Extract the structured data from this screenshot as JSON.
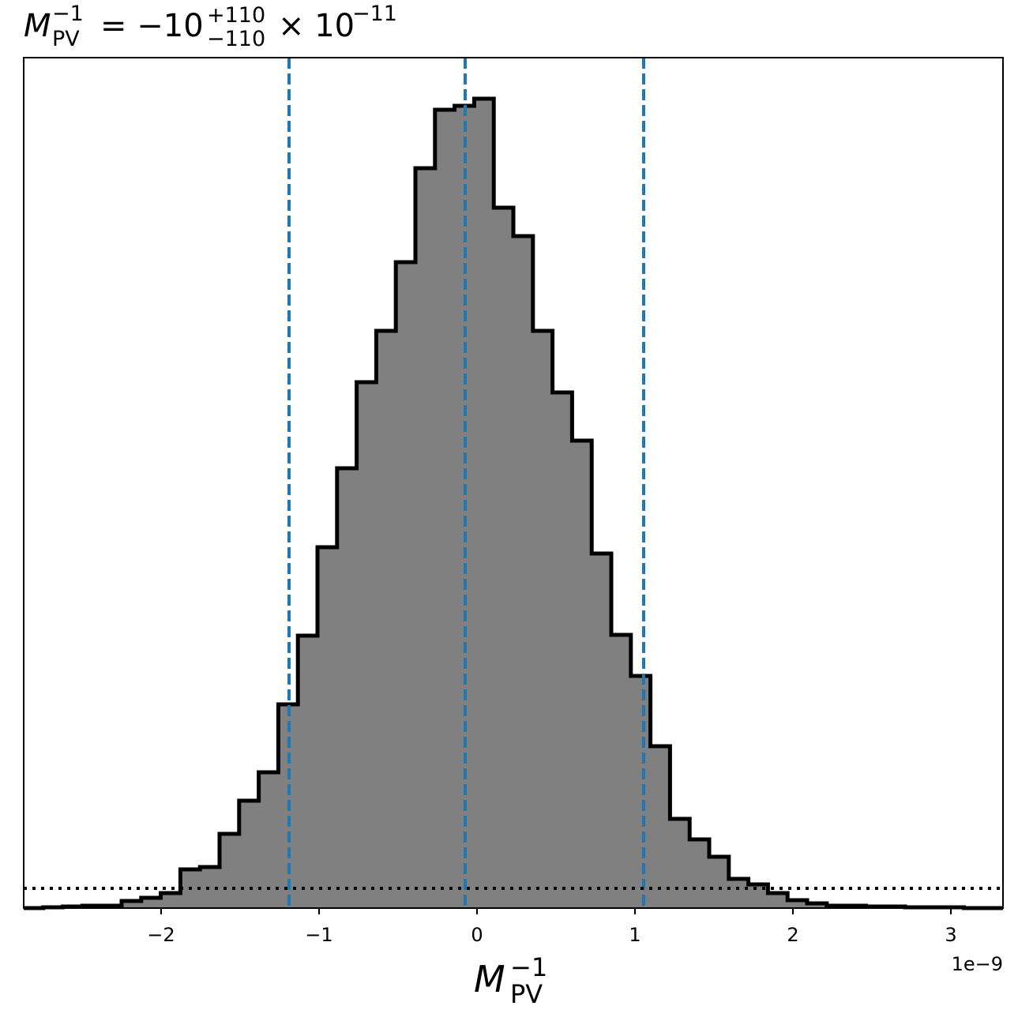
{
  "chart_data": {
    "type": "histogram",
    "title": {
      "base": "M",
      "sub": "PV",
      "sup": "−1",
      "value": "= −10",
      "plus": "+110",
      "minus": "−110",
      "times": "× 10",
      "exp": "−11"
    },
    "xlabel": {
      "base": "M",
      "sub": "PV",
      "sup": "−1"
    },
    "x_offset_label": "1e−9",
    "bins": [
      -2.87,
      -2.746,
      -2.622,
      -2.498,
      -2.374,
      -2.25,
      -2.126,
      -2.002,
      -1.878,
      -1.754,
      -1.63,
      -1.506,
      -1.382,
      -1.258,
      -1.134,
      -1.01,
      -0.886,
      -0.762,
      -0.638,
      -0.514,
      -0.39,
      -0.266,
      -0.142,
      -0.018,
      0.106,
      0.23,
      0.354,
      0.478,
      0.602,
      0.726,
      0.85,
      0.974,
      1.098,
      1.222,
      1.346,
      1.47,
      1.594,
      1.718,
      1.842,
      1.966,
      2.09,
      2.214,
      2.338,
      2.462,
      2.586,
      2.71,
      2.834,
      2.958,
      3.082,
      3.206,
      3.33
    ],
    "values": [
      0,
      1,
      2,
      3,
      3,
      9,
      13,
      19,
      49,
      52,
      94,
      136,
      172,
      258,
      345,
      457,
      557,
      666,
      731,
      818,
      937,
      1011,
      1016,
      1025,
      887,
      851,
      731,
      653,
      592,
      449,
      346,
      294,
      205,
      113,
      87,
      65,
      37,
      30,
      19,
      10,
      6,
      3,
      3,
      2,
      2,
      1,
      1,
      1,
      0,
      0
    ],
    "color": "#808080",
    "edgecolor": "#000000",
    "xlim": [
      -2.87,
      3.33
    ],
    "ylim": [
      0,
      1077
    ],
    "xticks": [
      {
        "value": -2,
        "label": "−2"
      },
      {
        "value": -1,
        "label": "−1"
      },
      0,
      1,
      2,
      3
    ],
    "quantiles": [
      -1.19,
      -0.075,
      1.055
    ],
    "quantile_color": "#1f77b4",
    "hline": 25
  }
}
